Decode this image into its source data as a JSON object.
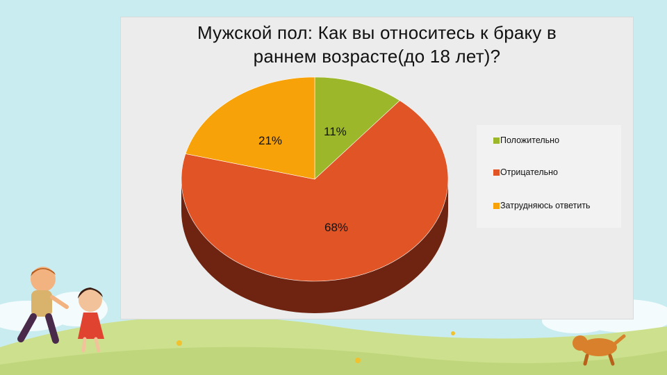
{
  "chart_data": {
    "type": "pie",
    "title": "Мужской пол: Как вы относитесь к браку в\nраннем возрасте(до 18 лет)?",
    "categories": [
      "Положительно",
      "Отрицательно",
      "Затрудняюсь ответить"
    ],
    "values": [
      11,
      68,
      21
    ],
    "data_labels": [
      "11%",
      "68%",
      "21%"
    ],
    "colors": [
      "#9cb82a",
      "#e05426",
      "#f8a20a"
    ],
    "side_colors": [
      "#5b6b18",
      "#6e2410",
      "#8a5806"
    ],
    "legend_position": "right",
    "style": "3d"
  },
  "decor": {
    "sky_color": "#c9ecf1",
    "grass_color": "#cde08d",
    "grass_dark": "#b9d176"
  }
}
